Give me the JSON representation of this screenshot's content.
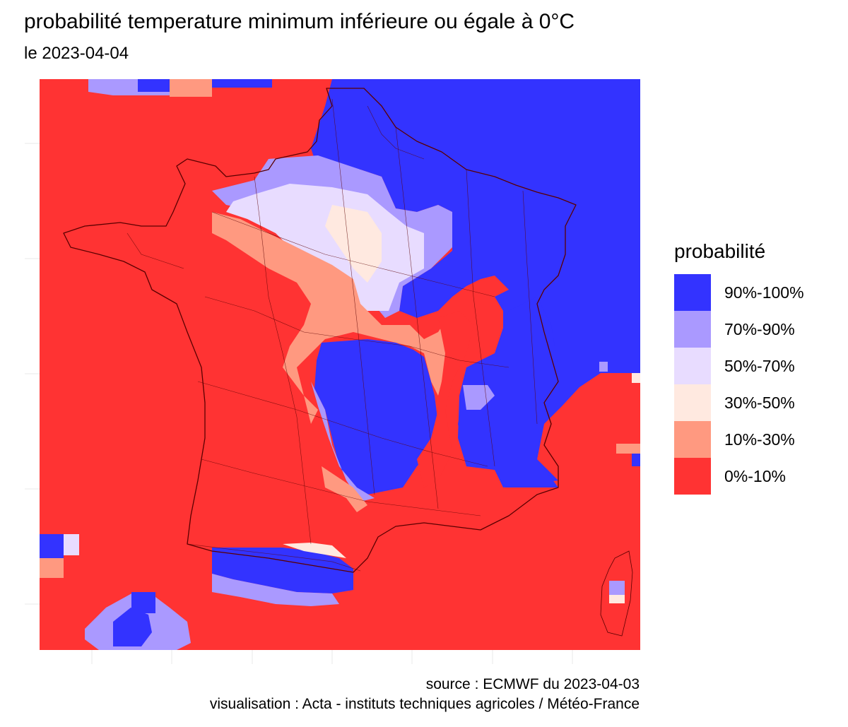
{
  "title": "probabilité temperature minimum inférieure ou égale à 0°C",
  "subtitle": "le 2023-04-04",
  "legend": {
    "title": "probabilité",
    "items": [
      {
        "label": "90%-100%",
        "color": "#3333ff"
      },
      {
        "label": "70%-90%",
        "color": "#aa99ff"
      },
      {
        "label": "50%-70%",
        "color": "#e8dcff"
      },
      {
        "label": "30%-50%",
        "color": "#ffe9e0"
      },
      {
        "label": "10%-30%",
        "color": "#ff9980"
      },
      {
        "label": "0%-10%",
        "color": "#ff3333"
      }
    ]
  },
  "caption": {
    "source": "source : ECMWF du 2023-04-03",
    "credit": "visualisation : Acta - instituts techniques agricoles / Météo-France"
  },
  "map": {
    "background_color": "#ff3333",
    "boundary_color": "#5a0000",
    "blue_zones": [
      "nord-est",
      "massif-central",
      "alpes",
      "pyrenees",
      "sierra-nevada",
      "pays-bas"
    ]
  }
}
